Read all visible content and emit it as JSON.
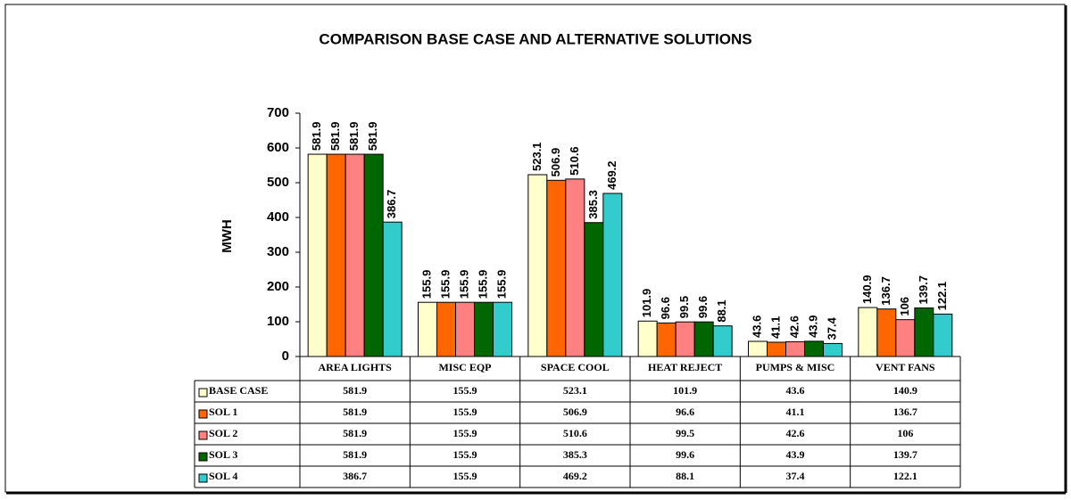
{
  "chart_data": {
    "type": "bar",
    "title": "COMPARISON BASE CASE AND ALTERNATIVE SOLUTIONS",
    "y_label": "MWH",
    "categories": [
      "AREA LIGHTS",
      "MISC EQP",
      "SPACE COOL",
      "HEAT REJECT",
      "PUMPS & MISC",
      "VENT FANS"
    ],
    "series": [
      {
        "name": "BASE CASE",
        "color": "#ffffcc",
        "values": [
          581.9,
          155.9,
          523.1,
          101.9,
          43.6,
          140.9
        ]
      },
      {
        "name": "SOL 1",
        "color": "#ff6600",
        "values": [
          581.9,
          155.9,
          506.9,
          96.6,
          41.1,
          136.7
        ]
      },
      {
        "name": "SOL 2",
        "color": "#ff8080",
        "values": [
          581.9,
          155.9,
          510.6,
          99.5,
          42.6,
          106
        ]
      },
      {
        "name": "SOL 3",
        "color": "#006600",
        "values": [
          581.9,
          155.9,
          385.3,
          99.6,
          43.9,
          139.7
        ]
      },
      {
        "name": "SOL 4",
        "color": "#33cccc",
        "values": [
          386.7,
          155.9,
          469.2,
          88.1,
          37.4,
          122.1
        ]
      }
    ],
    "ylim": [
      0,
      700
    ],
    "yticks": [
      0,
      100,
      200,
      300,
      400,
      500,
      600,
      700
    ],
    "grid": false,
    "data_table": true
  }
}
